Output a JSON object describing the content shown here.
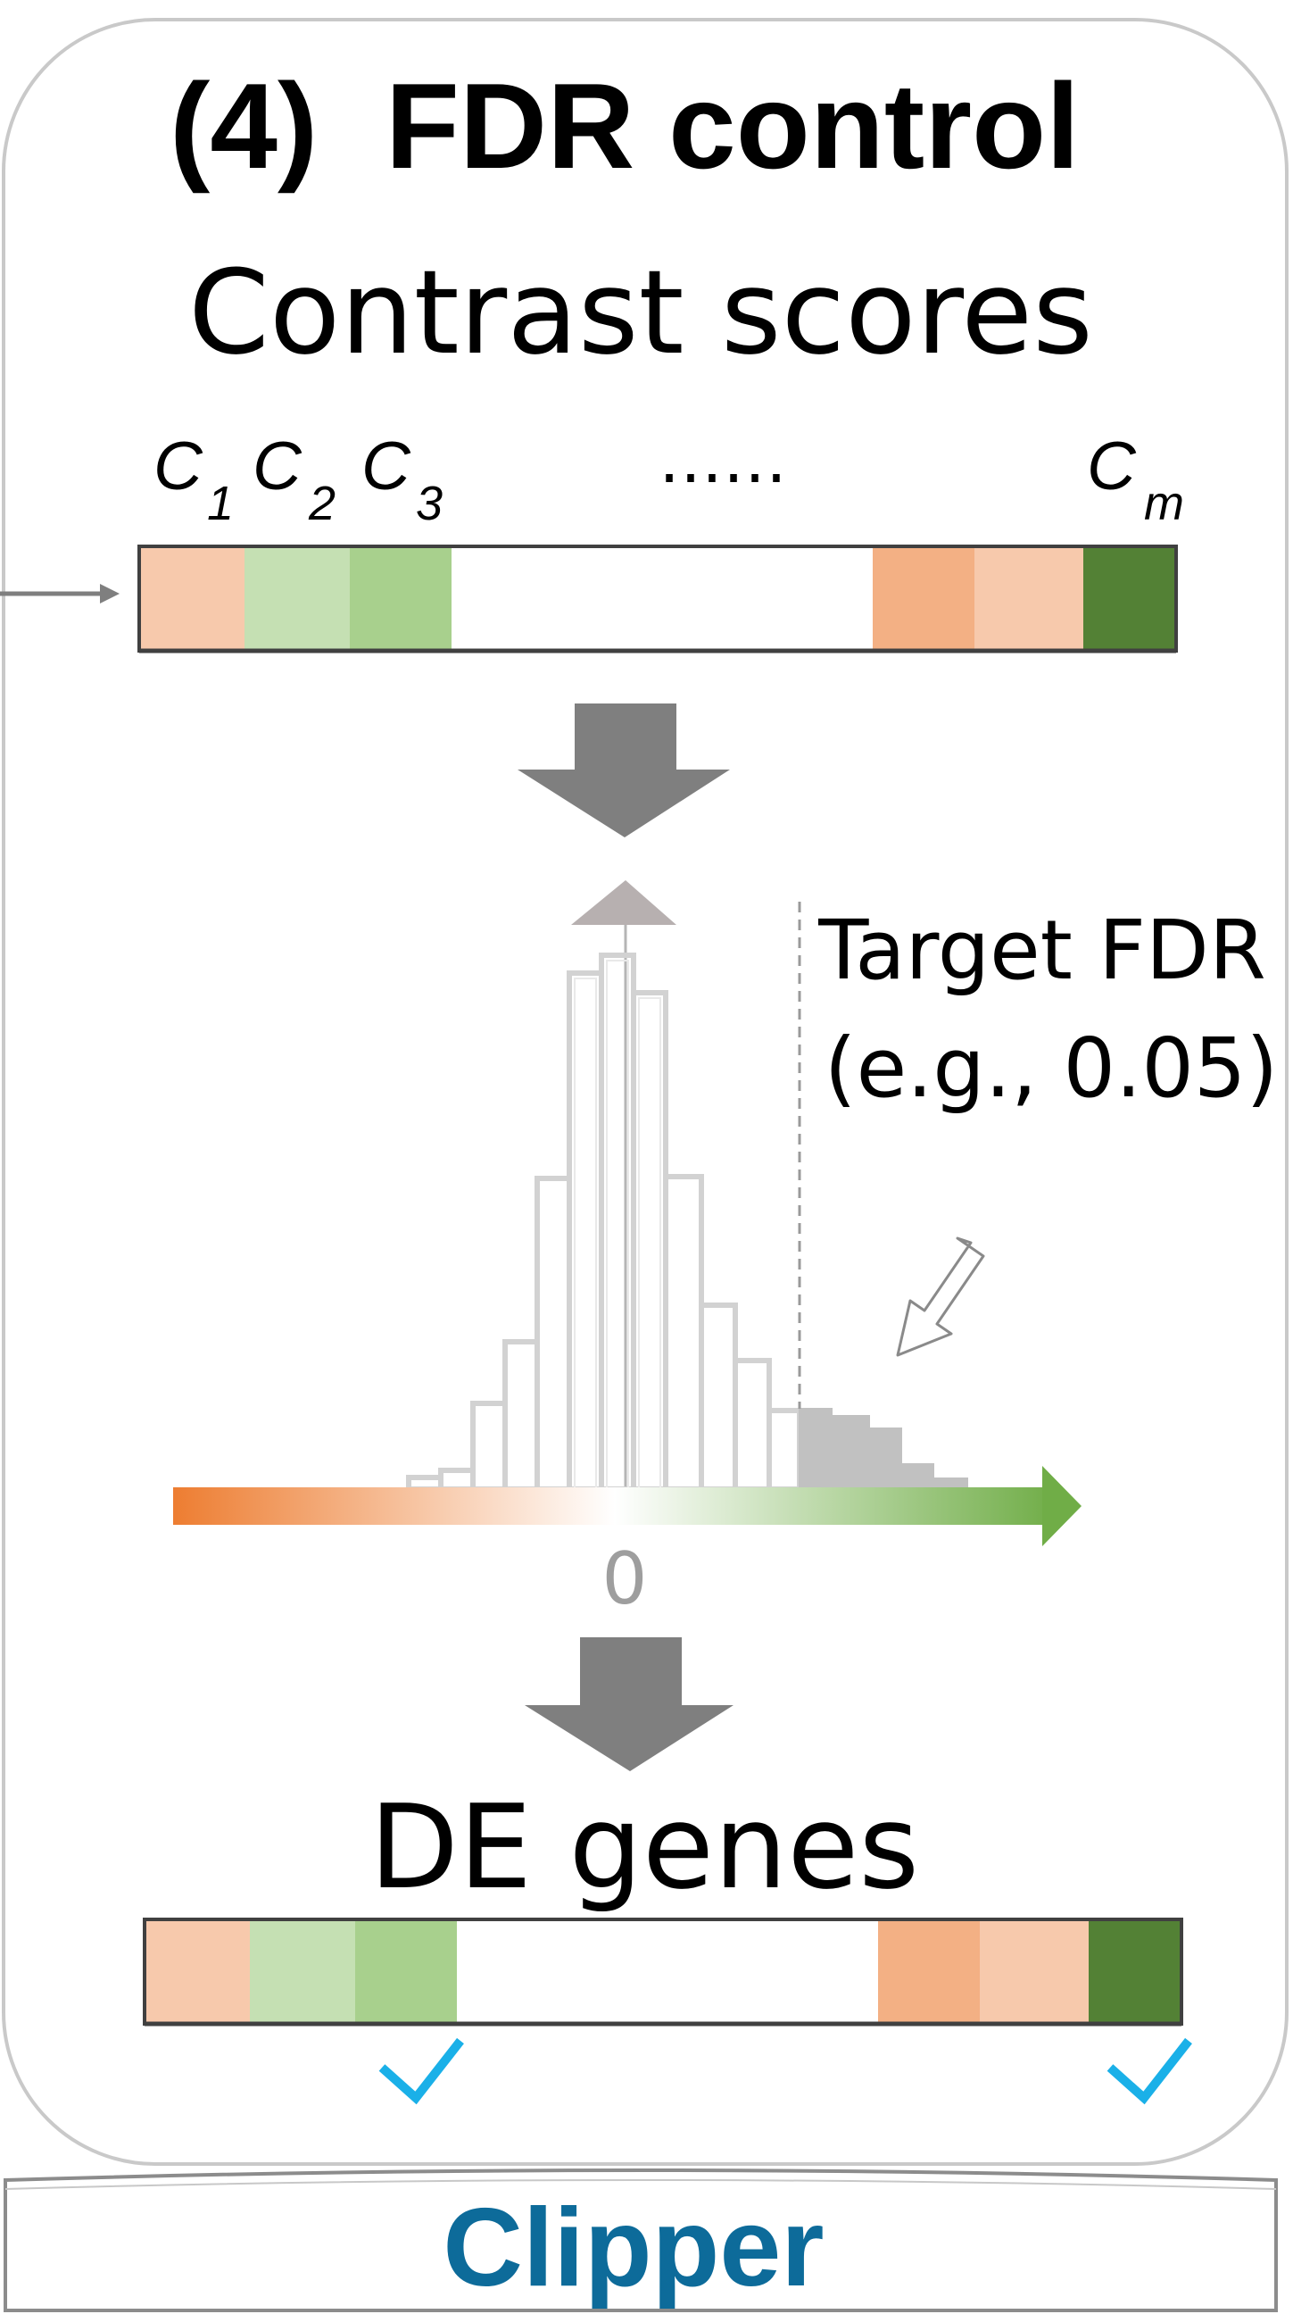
{
  "panel": {
    "title": "(4)  FDR control",
    "contrast_heading": "Contrast scores",
    "score_labels": [
      {
        "main": "C",
        "sub": "1"
      },
      {
        "main": "C",
        "sub": "2"
      },
      {
        "main": "C",
        "sub": "3"
      },
      {
        "main": "C",
        "sub": "m"
      }
    ],
    "ellipsis": "……",
    "target_fdr_line1": "Target FDR",
    "target_fdr_line2": "(e.g., 0.05)",
    "axis_zero": "0",
    "de_heading": "DE genes",
    "footer": "Clipper"
  },
  "colors": {
    "light_orange": "#f7c9ac",
    "orange": "#f3b084",
    "light_green": "#c5e0b3",
    "green": "#a8d08d",
    "dark_green": "#538135",
    "arrow_gray": "#7f7f7f",
    "check_blue": "#1ab0e8",
    "clipper_blue": "#0d6b9a",
    "axis_orange": "#ed7d31",
    "axis_green": "#70ad47"
  },
  "score_strip": [
    "light_orange",
    "light_green",
    "green",
    "white",
    "orange",
    "light_orange",
    "dark_green"
  ],
  "de_strip": [
    "light_orange",
    "light_green",
    "green",
    "white",
    "orange",
    "light_orange",
    "dark_green"
  ],
  "checkmarks": [
    "C3",
    "Cm"
  ]
}
